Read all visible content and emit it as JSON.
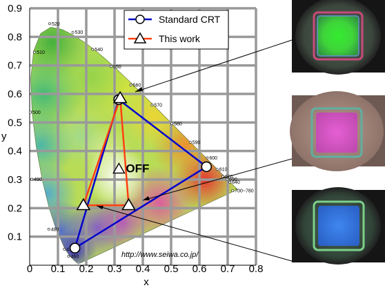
{
  "chart_data": {
    "type": "scatter",
    "title": "",
    "xlabel": "x",
    "ylabel": "y",
    "xlim": [
      0,
      0.8
    ],
    "ylim": [
      0,
      0.9
    ],
    "xticks": [
      "0",
      "0.1",
      "0.2",
      "0.3",
      "0.4",
      "0.5",
      "0.6",
      "0.7",
      "0.8"
    ],
    "yticks": [
      "0.1",
      "0.2",
      "0.3",
      "0.4",
      "0.5",
      "0.6",
      "0.7",
      "0.8",
      "0.9"
    ],
    "grid": true,
    "legend_position": "top-right",
    "series": [
      {
        "name": "Standard CRT",
        "color": "#0000cc",
        "marker": "circle",
        "points": [
          [
            0.16,
            0.06
          ],
          [
            0.315,
            0.58
          ],
          [
            0.625,
            0.345
          ]
        ]
      },
      {
        "name": "This work",
        "color": "#ff4010",
        "marker": "triangle",
        "points": [
          [
            0.19,
            0.21
          ],
          [
            0.32,
            0.585
          ],
          [
            0.35,
            0.21
          ]
        ]
      }
    ],
    "annotation": {
      "text": "OFF",
      "x": 0.335,
      "y": 0.335
    },
    "wavelength_labels": [
      {
        "text": "520",
        "x": 0.078,
        "y": 0.84
      },
      {
        "text": "530",
        "x": 0.16,
        "y": 0.81
      },
      {
        "text": "510",
        "x": 0.025,
        "y": 0.74
      },
      {
        "text": "540",
        "x": 0.23,
        "y": 0.75
      },
      {
        "text": "550",
        "x": 0.295,
        "y": 0.69
      },
      {
        "text": "560",
        "x": 0.365,
        "y": 0.625
      },
      {
        "text": "570",
        "x": 0.44,
        "y": 0.555
      },
      {
        "text": "500",
        "x": 0.01,
        "y": 0.53
      },
      {
        "text": "580",
        "x": 0.51,
        "y": 0.49
      },
      {
        "text": "590",
        "x": 0.575,
        "y": 0.425
      },
      {
        "text": "600",
        "x": 0.635,
        "y": 0.37
      },
      {
        "text": "610",
        "x": 0.67,
        "y": 0.33
      },
      {
        "text": "620",
        "x": 0.69,
        "y": 0.305
      },
      {
        "text": "630",
        "x": 0.705,
        "y": 0.295
      },
      {
        "text": "640",
        "x": 0.715,
        "y": 0.285
      },
      {
        "text": "700~780",
        "x": 0.725,
        "y": 0.255
      },
      {
        "text": "490",
        "x": 0.015,
        "y": 0.295
      },
      {
        "text": "480",
        "x": 0.075,
        "y": 0.12
      },
      {
        "text": "470",
        "x": 0.13,
        "y": 0.05
      },
      {
        "text": "460",
        "x": 0.145,
        "y": 0.025
      }
    ],
    "source_text": "http://www.seiwa.co.jp/"
  },
  "photos": [
    {
      "name": "green-emission-photo",
      "color": "#44ee44"
    },
    {
      "name": "white-emission-photo",
      "color": "#ee66cc"
    },
    {
      "name": "blue-emission-photo",
      "color": "#3377ee"
    }
  ]
}
